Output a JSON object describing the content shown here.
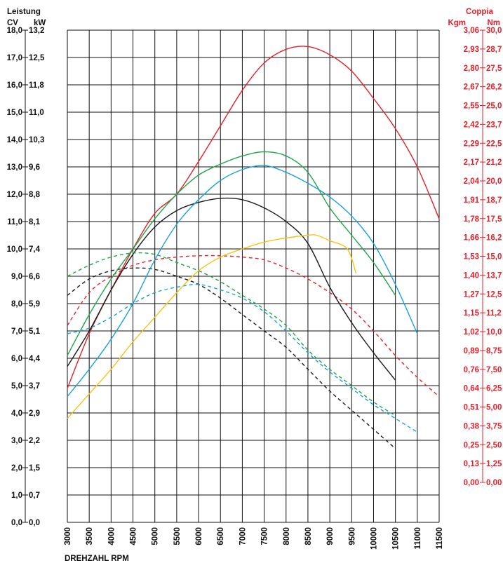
{
  "chart_data": {
    "type": "line",
    "left_axis": {
      "title": "Leistung",
      "unit_cv": "CV",
      "unit_kw": "kW",
      "ticks_cv": [
        "0,0",
        "1,0",
        "2,0",
        "3,0",
        "4,0",
        "5,0",
        "6,0",
        "7,0",
        "8,0",
        "9,0",
        "10,0",
        "11,0",
        "12,0",
        "13,0",
        "14,0",
        "15,0",
        "16,0",
        "17,0",
        "18,0"
      ],
      "ticks_kw": [
        "0,0",
        "0,7",
        "1,5",
        "2,2",
        "2,9",
        "3,7",
        "4,4",
        "5,1",
        "5,9",
        "6,6",
        "7,4",
        "8,1",
        "8,8",
        "9,6",
        "10,3",
        "11,0",
        "11,8",
        "12,5",
        "13,2"
      ],
      "range_cv": [
        0,
        18
      ]
    },
    "right_axis": {
      "title": "Coppia",
      "unit_kgm": "Kgm",
      "unit_nm": "Nm",
      "ticks_kgm": [
        "0,00",
        "0,13",
        "0,25",
        "0,38",
        "0,51",
        "0,64",
        "0,76",
        "0,89",
        "1,02",
        "1,15",
        "1,27",
        "1,40",
        "1,53",
        "1,66",
        "1,78",
        "1,91",
        "2,04",
        "2,17",
        "2,29",
        "2,42",
        "2,55",
        "2,67",
        "2,80",
        "2,93",
        "3,06"
      ],
      "ticks_nm": [
        "0,00",
        "1,25",
        "2,50",
        "3,75",
        "5,00",
        "6,25",
        "7,50",
        "8,75",
        "10,0",
        "11,2",
        "12,5",
        "13,7",
        "15,0",
        "16,2",
        "17,5",
        "18,7",
        "20,0",
        "21,2",
        "22,5",
        "23,7",
        "25,0",
        "26,2",
        "27,5",
        "28,7",
        "30,0"
      ],
      "range_nm": [
        0,
        30
      ]
    },
    "x_axis": {
      "label": "DREHZAHL RPM",
      "ticks": [
        "3000",
        "3500",
        "4000",
        "4500",
        "5000",
        "5500",
        "6000",
        "6500",
        "7000",
        "7500",
        "8000",
        "8500",
        "9000",
        "9500",
        "10000",
        "10500",
        "11000",
        "11500"
      ],
      "range": [
        3000,
        11500
      ]
    },
    "grid": true,
    "series": [
      {
        "color": "#e8202a",
        "dashed": false,
        "axis": "left",
        "points": [
          [
            3000,
            4.9
          ],
          [
            3500,
            6.9
          ],
          [
            4000,
            8.5
          ],
          [
            4500,
            10.0
          ],
          [
            5000,
            11.3
          ],
          [
            5500,
            12.0
          ],
          [
            6000,
            13.2
          ],
          [
            6500,
            14.5
          ],
          [
            7000,
            15.8
          ],
          [
            7500,
            16.8
          ],
          [
            8000,
            17.3
          ],
          [
            8500,
            17.4
          ],
          [
            9000,
            17.1
          ],
          [
            9500,
            16.5
          ],
          [
            10000,
            15.5
          ],
          [
            10500,
            14.4
          ],
          [
            11000,
            13.0
          ],
          [
            11500,
            11.1
          ]
        ]
      },
      {
        "color": "#e8202a",
        "dashed": true,
        "axis": "left",
        "points": [
          [
            3000,
            7.2
          ],
          [
            3500,
            8.4
          ],
          [
            4000,
            9.0
          ],
          [
            4500,
            9.4
          ],
          [
            5000,
            9.6
          ],
          [
            5500,
            9.7
          ],
          [
            6000,
            9.75
          ],
          [
            6500,
            9.75
          ],
          [
            7000,
            9.7
          ],
          [
            7500,
            9.6
          ],
          [
            8000,
            9.3
          ],
          [
            8500,
            8.9
          ],
          [
            9000,
            8.4
          ],
          [
            9500,
            7.8
          ],
          [
            10000,
            7.0
          ],
          [
            10500,
            6.1
          ],
          [
            11000,
            5.3
          ],
          [
            11500,
            4.6
          ]
        ]
      },
      {
        "color": "#1a1a1a",
        "dashed": false,
        "axis": "left",
        "points": [
          [
            3000,
            5.7
          ],
          [
            3500,
            7.0
          ],
          [
            4000,
            8.5
          ],
          [
            4500,
            9.8
          ],
          [
            5000,
            10.8
          ],
          [
            5500,
            11.4
          ],
          [
            6000,
            11.7
          ],
          [
            6500,
            11.85
          ],
          [
            7000,
            11.8
          ],
          [
            7500,
            11.5
          ],
          [
            8000,
            11.0
          ],
          [
            8500,
            10.2
          ],
          [
            9000,
            8.6
          ],
          [
            9500,
            7.3
          ],
          [
            10000,
            6.2
          ],
          [
            10500,
            5.2
          ]
        ]
      },
      {
        "color": "#1a1a1a",
        "dashed": true,
        "axis": "left",
        "points": [
          [
            3000,
            8.3
          ],
          [
            3500,
            8.9
          ],
          [
            4000,
            9.2
          ],
          [
            4500,
            9.3
          ],
          [
            5000,
            9.25
          ],
          [
            5500,
            9.0
          ],
          [
            6000,
            8.7
          ],
          [
            6500,
            8.2
          ],
          [
            7000,
            7.6
          ],
          [
            7500,
            7.0
          ],
          [
            8000,
            6.4
          ],
          [
            8500,
            5.6
          ],
          [
            9000,
            4.8
          ],
          [
            9500,
            4.1
          ],
          [
            10000,
            3.4
          ],
          [
            10500,
            2.7
          ]
        ]
      },
      {
        "color": "#1ea64a",
        "dashed": false,
        "axis": "left",
        "points": [
          [
            3000,
            6.1
          ],
          [
            3500,
            7.6
          ],
          [
            4000,
            8.9
          ],
          [
            4500,
            10.0
          ],
          [
            5000,
            11.1
          ],
          [
            5500,
            12.0
          ],
          [
            6000,
            12.7
          ],
          [
            6500,
            13.1
          ],
          [
            7000,
            13.4
          ],
          [
            7500,
            13.55
          ],
          [
            8000,
            13.4
          ],
          [
            8500,
            12.8
          ],
          [
            9000,
            11.5
          ],
          [
            9500,
            10.5
          ],
          [
            10000,
            9.5
          ],
          [
            10500,
            8.3
          ]
        ]
      },
      {
        "color": "#1ea64a",
        "dashed": true,
        "axis": "left",
        "points": [
          [
            3000,
            9.0
          ],
          [
            3500,
            9.4
          ],
          [
            4000,
            9.7
          ],
          [
            4500,
            9.85
          ],
          [
            5000,
            9.8
          ],
          [
            5500,
            9.5
          ],
          [
            6000,
            9.2
          ],
          [
            6500,
            8.8
          ],
          [
            7000,
            8.3
          ],
          [
            7500,
            7.8
          ],
          [
            8000,
            7.2
          ],
          [
            8500,
            6.3
          ],
          [
            9000,
            5.6
          ],
          [
            9500,
            5.0
          ],
          [
            10000,
            4.4
          ],
          [
            10500,
            3.9
          ]
        ]
      },
      {
        "color": "#1aa3d8",
        "dashed": false,
        "axis": "left",
        "points": [
          [
            3000,
            4.6
          ],
          [
            3500,
            5.6
          ],
          [
            4000,
            6.7
          ],
          [
            4500,
            8.0
          ],
          [
            5000,
            9.6
          ],
          [
            5500,
            10.9
          ],
          [
            6000,
            11.8
          ],
          [
            6500,
            12.5
          ],
          [
            7000,
            12.9
          ],
          [
            7500,
            13.05
          ],
          [
            8000,
            12.8
          ],
          [
            8500,
            12.4
          ],
          [
            9000,
            11.9
          ],
          [
            9500,
            11.2
          ],
          [
            10000,
            10.2
          ],
          [
            10500,
            8.7
          ],
          [
            11000,
            6.9
          ]
        ]
      },
      {
        "color": "#1aa3d8",
        "dashed": true,
        "axis": "left",
        "points": [
          [
            3000,
            6.9
          ],
          [
            3500,
            7.1
          ],
          [
            4000,
            7.5
          ],
          [
            4500,
            8.0
          ],
          [
            5000,
            8.4
          ],
          [
            5500,
            8.6
          ],
          [
            6000,
            8.7
          ],
          [
            6500,
            8.5
          ],
          [
            7000,
            8.2
          ],
          [
            7500,
            7.7
          ],
          [
            8000,
            7.0
          ],
          [
            8500,
            6.2
          ],
          [
            9000,
            5.5
          ],
          [
            9500,
            4.9
          ],
          [
            10000,
            4.3
          ],
          [
            10500,
            3.8
          ],
          [
            11000,
            3.3
          ]
        ]
      },
      {
        "color": "#f5c518",
        "dashed": false,
        "axis": "left",
        "points": [
          [
            3000,
            3.8
          ],
          [
            3500,
            4.7
          ],
          [
            4000,
            5.6
          ],
          [
            4500,
            6.6
          ],
          [
            5000,
            7.5
          ],
          [
            5500,
            8.4
          ],
          [
            6000,
            9.2
          ],
          [
            6500,
            9.7
          ],
          [
            7000,
            10.0
          ],
          [
            7500,
            10.25
          ],
          [
            8000,
            10.4
          ],
          [
            8500,
            10.5
          ],
          [
            8700,
            10.5
          ],
          [
            9000,
            10.3
          ],
          [
            9400,
            10.0
          ],
          [
            9600,
            9.1
          ]
        ]
      }
    ]
  }
}
